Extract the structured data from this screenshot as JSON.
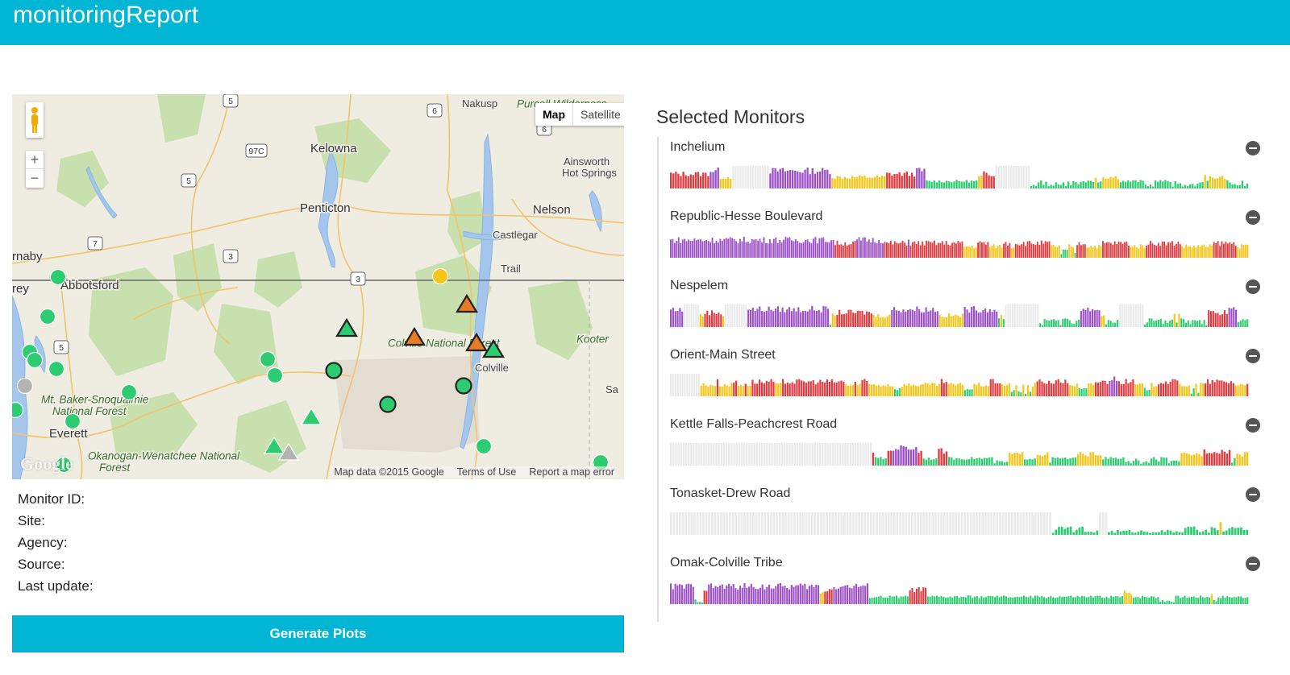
{
  "app": {
    "title": "monitoringReport"
  },
  "map": {
    "map_type_options": [
      "Map",
      "Satellite"
    ],
    "zoom_in": "+",
    "zoom_out": "−",
    "labels": [
      {
        "text": "Kelowna",
        "cls": "city"
      },
      {
        "text": "Penticton",
        "cls": "city"
      },
      {
        "text": "Nelson",
        "cls": "city"
      },
      {
        "text": "Castlegar",
        "cls": "town"
      },
      {
        "text": "Trail",
        "cls": "town"
      },
      {
        "text": "Ainsworth Hot Springs",
        "cls": "town"
      },
      {
        "text": "Abbotsford",
        "cls": "city"
      },
      {
        "text": "rnaby",
        "cls": "city"
      },
      {
        "text": "rey",
        "cls": "city"
      },
      {
        "text": "Colville National Forest",
        "cls": "park"
      },
      {
        "text": "Colville",
        "cls": "town"
      },
      {
        "text": "Kooter",
        "cls": "park"
      },
      {
        "text": "Mt. Baker-Snoqualmie National Forest",
        "cls": "park"
      },
      {
        "text": "Everett",
        "cls": "city"
      },
      {
        "text": "Okanogan-Wenatchee National Forest",
        "cls": "park"
      },
      {
        "text": "Sa",
        "cls": "town"
      },
      {
        "text": "Nakusp",
        "cls": "town"
      },
      {
        "text": "Purcell Wilderness",
        "cls": "park"
      }
    ],
    "shields": [
      "5",
      "97C",
      "5",
      "7",
      "3",
      "3",
      "6",
      "6",
      "5"
    ],
    "attribution": [
      "Map data ©2015 Google",
      "Terms of Use",
      "Report a map error"
    ],
    "logo": "Google"
  },
  "monitor_info": {
    "monitor_id_label": "Monitor ID:",
    "site_label": "Site:",
    "agency_label": "Agency:",
    "source_label": "Source:",
    "last_update_label": "Last update:"
  },
  "generate_button": "Generate Plots",
  "selected_monitors_title": "Selected Monitors",
  "colors": {
    "purple": "#9b4fc7",
    "red": "#e0393e",
    "orange": "#f07a1d",
    "yellow": "#f5c518",
    "green": "#2ecc71",
    "missing": "#d9d9d9"
  },
  "monitors": [
    {
      "name": "Inchelium",
      "pattern": "RRRRRRRRRRRRRRRRPPPPYYYYY---------------PPPPPPPPPPPPPPPPPPPPPPPPPYYYYYYYYYYYYYYYYYYYYYYRRRRRRRRRRRRPPPPGGGGGGGGGGGGGGGGGGGGGYYRRRRR--------------...GG.G...G..G.G.GG.GGGGGGYGGYYYYYYYGGGGGGGGGG....GGGGGGG.G.........GGYGYYYYYYYGG....G..",
      "scale": 1.0
    },
    {
      "name": "Republic-Hesse Boulevard",
      "pattern": "PPPPPPPPPPPPPPPPPPPPPPPPPPPPPPPPPPPPPPPPPPPPPPPPPPPPPPPPPPPPPPPPPPPPPPPPPPPPPPPPPPPRRRRRRRRRRRPPPPPPPPPPPPPPRRRRRRRRRRRRPRRRRRRRRRRRRRRRRRRRRRRRRRRRYYYYYYYRRRRRRYYYYYYYRRRRYYRRRRRRRRRRRRRRRRRRYYYYY.GGGYYY.RRRRRYYYYYYYYRRRRRRRRRRRRRRYYYYYYYYRRRRRRRRRRRRRRRRRRYYYYYYYYYYYYYYYYRRRRRRRRRRRRYYYYYY",
      "scale": 1.0
    },
    {
      "name": "Nespelem",
      "pattern": "PPPPPP-------YYRRRRRRRRY----------PPPPPPPPPPPPPPPPPPPPPPPPPPPPPPPPPPPP.YYRRRRRRRRRRRRRRRRYYYYYYYYPPPPPPPPPPPPPPPPPPPPPYYYYYYYYYYYPPPPPPPPPPPPPPPGYG---------------..GGGGGGG.GGGG..GGPPPPPPPPPYY.GG..G-----------..GGGGGG.G.GGY.YGG.G.GGGG.G.RRRRRRRRRPPPP.GGGG",
      "scale": 1.0
    },
    {
      "name": "Orient-Main Street",
      "pattern": "-------------YYYYYYYRYYYYYYRRYYYRYYRRRRRRRRRRYYYRRRRRRRRRRRRRRRRRRRRRRRRRRRYYYYRYYRRRYYYYYYYYYYYGGGYYYYYYYYYYYYYYYYYRRRYYYYYYYGGGGYYYYYYYRRRRRYYYY.GY..Y.Y.YYRRRRRRRRRRRRRRYYYYGGGGYYYRRRRRRPPPPRRRRRRRYYYYGGGYYYRRRRRRRRRYYYYY.GY.YYRRRRRRRRRRRRRYYYYYR",
      "scale": 1.0
    },
    {
      "name": "Kettle Falls-Peachcrest Road",
      "pattern": "--------------------------------------------------------------------------------RGGGGGRRPPPPPPPPPPRRGGGGGGRRRRGGGGGGGGGGGGGGGGGG......YYYYYYGGGGGYYYYY.GGGGGGGGGGYYYYYYYYYYGGGGGGGGG....G.....GGG.GGG.....YYYYYYYYYRRRRRRRRRRR.GYYYYY",
      "scale": 1.0
    },
    {
      "name": "Tonasket-Drew Road",
      "pattern": "----------------------------------------------------------------------------------------------------------------------------------..GGGGG..GG.....---..........................GGGG.....GG.Y..GGGGG..",
      "scale": 1.0
    },
    {
      "name": "Omak-Colville Tribe",
      "pattern": "PPPPPPPPPPP....RRPPPPPPPPPPPPPPPPPPPPPPPPPPPPPPPPPPPPPPPPPPPPPPPPPPYYRRRRPPPPPPPPPPPPPPPPGGGGGGGGGGGGGGGGGGRRRRRRRRGGGGGGGGGGGGGGGGGGGGGGGGGGGGGGGGGGGGGGGGGGGGGGGGGGGGGGGGGGGGGGGGGGGGGGGGGGGGGGGGGGGGGGGGYYYYGGGGGGGGGGGG.......GGGGGGGGGGGGGGGGY..GGGGGGGGGGGGGG",
      "scale": 1.0
    }
  ]
}
